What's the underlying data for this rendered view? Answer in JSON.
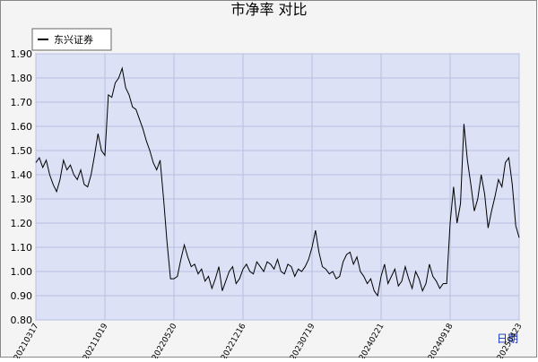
{
  "chart_data": {
    "type": "line",
    "title": "市净率  对比",
    "x_label": "日期",
    "x_tick_labels": [
      "20210317",
      "20211019",
      "20220520",
      "20221216",
      "20230719",
      "20240221",
      "20240918",
      "20250423"
    ],
    "ylim": [
      0.8,
      1.9
    ],
    "yticks": [
      {
        "value": 0.8,
        "label": "0.80"
      },
      {
        "value": 0.9,
        "label": "0.90"
      },
      {
        "value": 1.0,
        "label": "1.00"
      },
      {
        "value": 1.1,
        "label": "1.10"
      },
      {
        "value": 1.2,
        "label": "1.20"
      },
      {
        "value": 1.3,
        "label": "1.30"
      },
      {
        "value": 1.4,
        "label": "1.40"
      },
      {
        "value": 1.5,
        "label": "1.50"
      },
      {
        "value": 1.6,
        "label": "1.60"
      },
      {
        "value": 1.7,
        "label": "1.70"
      },
      {
        "value": 1.8,
        "label": "1.80"
      },
      {
        "value": 1.9,
        "label": "1.90"
      }
    ],
    "grid": true,
    "legend": "top-left",
    "series": [
      {
        "name": "东兴证券",
        "color": "#000000",
        "values": [
          1.45,
          1.47,
          1.43,
          1.46,
          1.4,
          1.36,
          1.33,
          1.38,
          1.46,
          1.42,
          1.44,
          1.4,
          1.38,
          1.42,
          1.36,
          1.35,
          1.4,
          1.48,
          1.57,
          1.5,
          1.48,
          1.73,
          1.72,
          1.78,
          1.8,
          1.84,
          1.76,
          1.73,
          1.68,
          1.67,
          1.63,
          1.59,
          1.54,
          1.5,
          1.45,
          1.42,
          1.46,
          1.3,
          1.12,
          0.97,
          0.97,
          0.98,
          1.05,
          1.11,
          1.06,
          1.02,
          1.03,
          0.99,
          1.01,
          0.96,
          0.98,
          0.93,
          0.97,
          1.02,
          0.92,
          0.96,
          1.0,
          1.02,
          0.95,
          0.97,
          1.01,
          1.03,
          1.0,
          0.99,
          1.04,
          1.02,
          1.0,
          1.04,
          1.03,
          1.01,
          1.05,
          1.0,
          0.99,
          1.03,
          1.02,
          0.98,
          1.01,
          1.0,
          1.02,
          1.05,
          1.1,
          1.17,
          1.08,
          1.02,
          1.01,
          0.99,
          1.0,
          0.97,
          0.98,
          1.04,
          1.07,
          1.08,
          1.03,
          1.06,
          1.0,
          0.98,
          0.95,
          0.97,
          0.92,
          0.9,
          0.98,
          1.03,
          0.95,
          0.98,
          1.01,
          0.94,
          0.96,
          1.02,
          0.97,
          0.93,
          1.0,
          0.97,
          0.92,
          0.95,
          1.03,
          0.98,
          0.96,
          0.93,
          0.95,
          0.95,
          1.2,
          1.35,
          1.2,
          1.28,
          1.61,
          1.46,
          1.36,
          1.25,
          1.3,
          1.4,
          1.32,
          1.18,
          1.25,
          1.31,
          1.38,
          1.35,
          1.45,
          1.47,
          1.36,
          1.19,
          1.14
        ]
      }
    ]
  }
}
